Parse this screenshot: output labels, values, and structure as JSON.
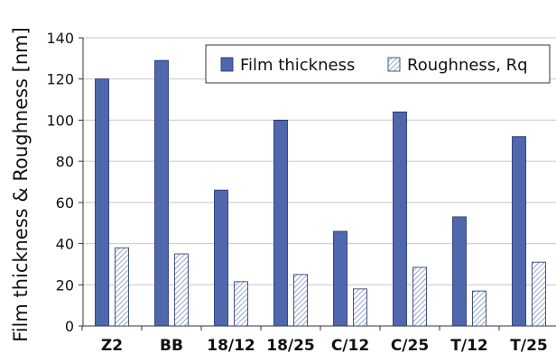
{
  "chart_data": {
    "type": "bar",
    "categories": [
      "Z2",
      "BB",
      "18/12",
      "18/25",
      "C/12",
      "C/25",
      "T/12",
      "T/25"
    ],
    "series": [
      {
        "name": "Film thickness",
        "values": [
          120,
          129,
          66,
          100,
          46,
          104,
          53,
          92
        ],
        "color": "#4f67ad",
        "pattern": "solid"
      },
      {
        "name": "Roughness, Rq",
        "values": [
          38,
          35,
          21.5,
          25,
          18,
          28.5,
          17,
          31
        ],
        "color": "#6a7fbf",
        "pattern": "hatched"
      }
    ],
    "title": "",
    "xlabel": "",
    "ylabel": "Film thickness & Roughness [nm]",
    "ylim": [
      0,
      140
    ],
    "yticks": [
      0,
      20,
      40,
      60,
      80,
      100,
      120,
      140
    ],
    "grid": true,
    "legend_position": "top-right"
  }
}
